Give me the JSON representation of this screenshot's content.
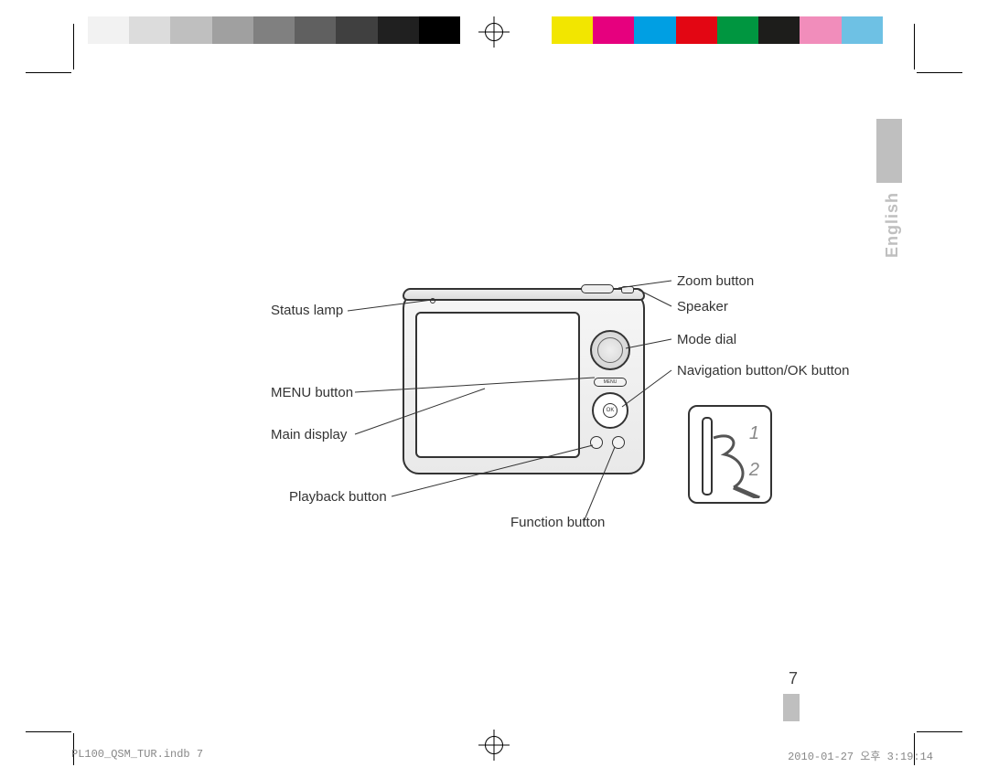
{
  "colorbar": {
    "left": [
      "#f2f2f2",
      "#dcdcdc",
      "#bfbfbf",
      "#a0a0a0",
      "#808080",
      "#606060",
      "#404040",
      "#202020",
      "#000000"
    ],
    "right": [
      "#f2e600",
      "#e6007e",
      "#009fe3",
      "#e30613",
      "#009640",
      "#1d1d1b",
      "#f18dbb",
      "#6ec1e4",
      "#ffffff"
    ]
  },
  "language_tab": "English",
  "page_number": "7",
  "labels": {
    "left": {
      "status_lamp": "Status lamp",
      "menu_button": "MENU button",
      "main_display": "Main display",
      "playback_button": "Playback button"
    },
    "right": {
      "zoom_button": "Zoom button",
      "speaker": "Speaker",
      "mode_dial": "Mode dial",
      "nav_ok": "Navigation button/OK button"
    },
    "bottom": {
      "function_button": "Function button"
    }
  },
  "inset": {
    "step1": "1",
    "step2": "2"
  },
  "footer": {
    "file": "PL100_QSM_TUR.indb   7",
    "timestamp": "2010-01-27   오후 3:19:14"
  }
}
